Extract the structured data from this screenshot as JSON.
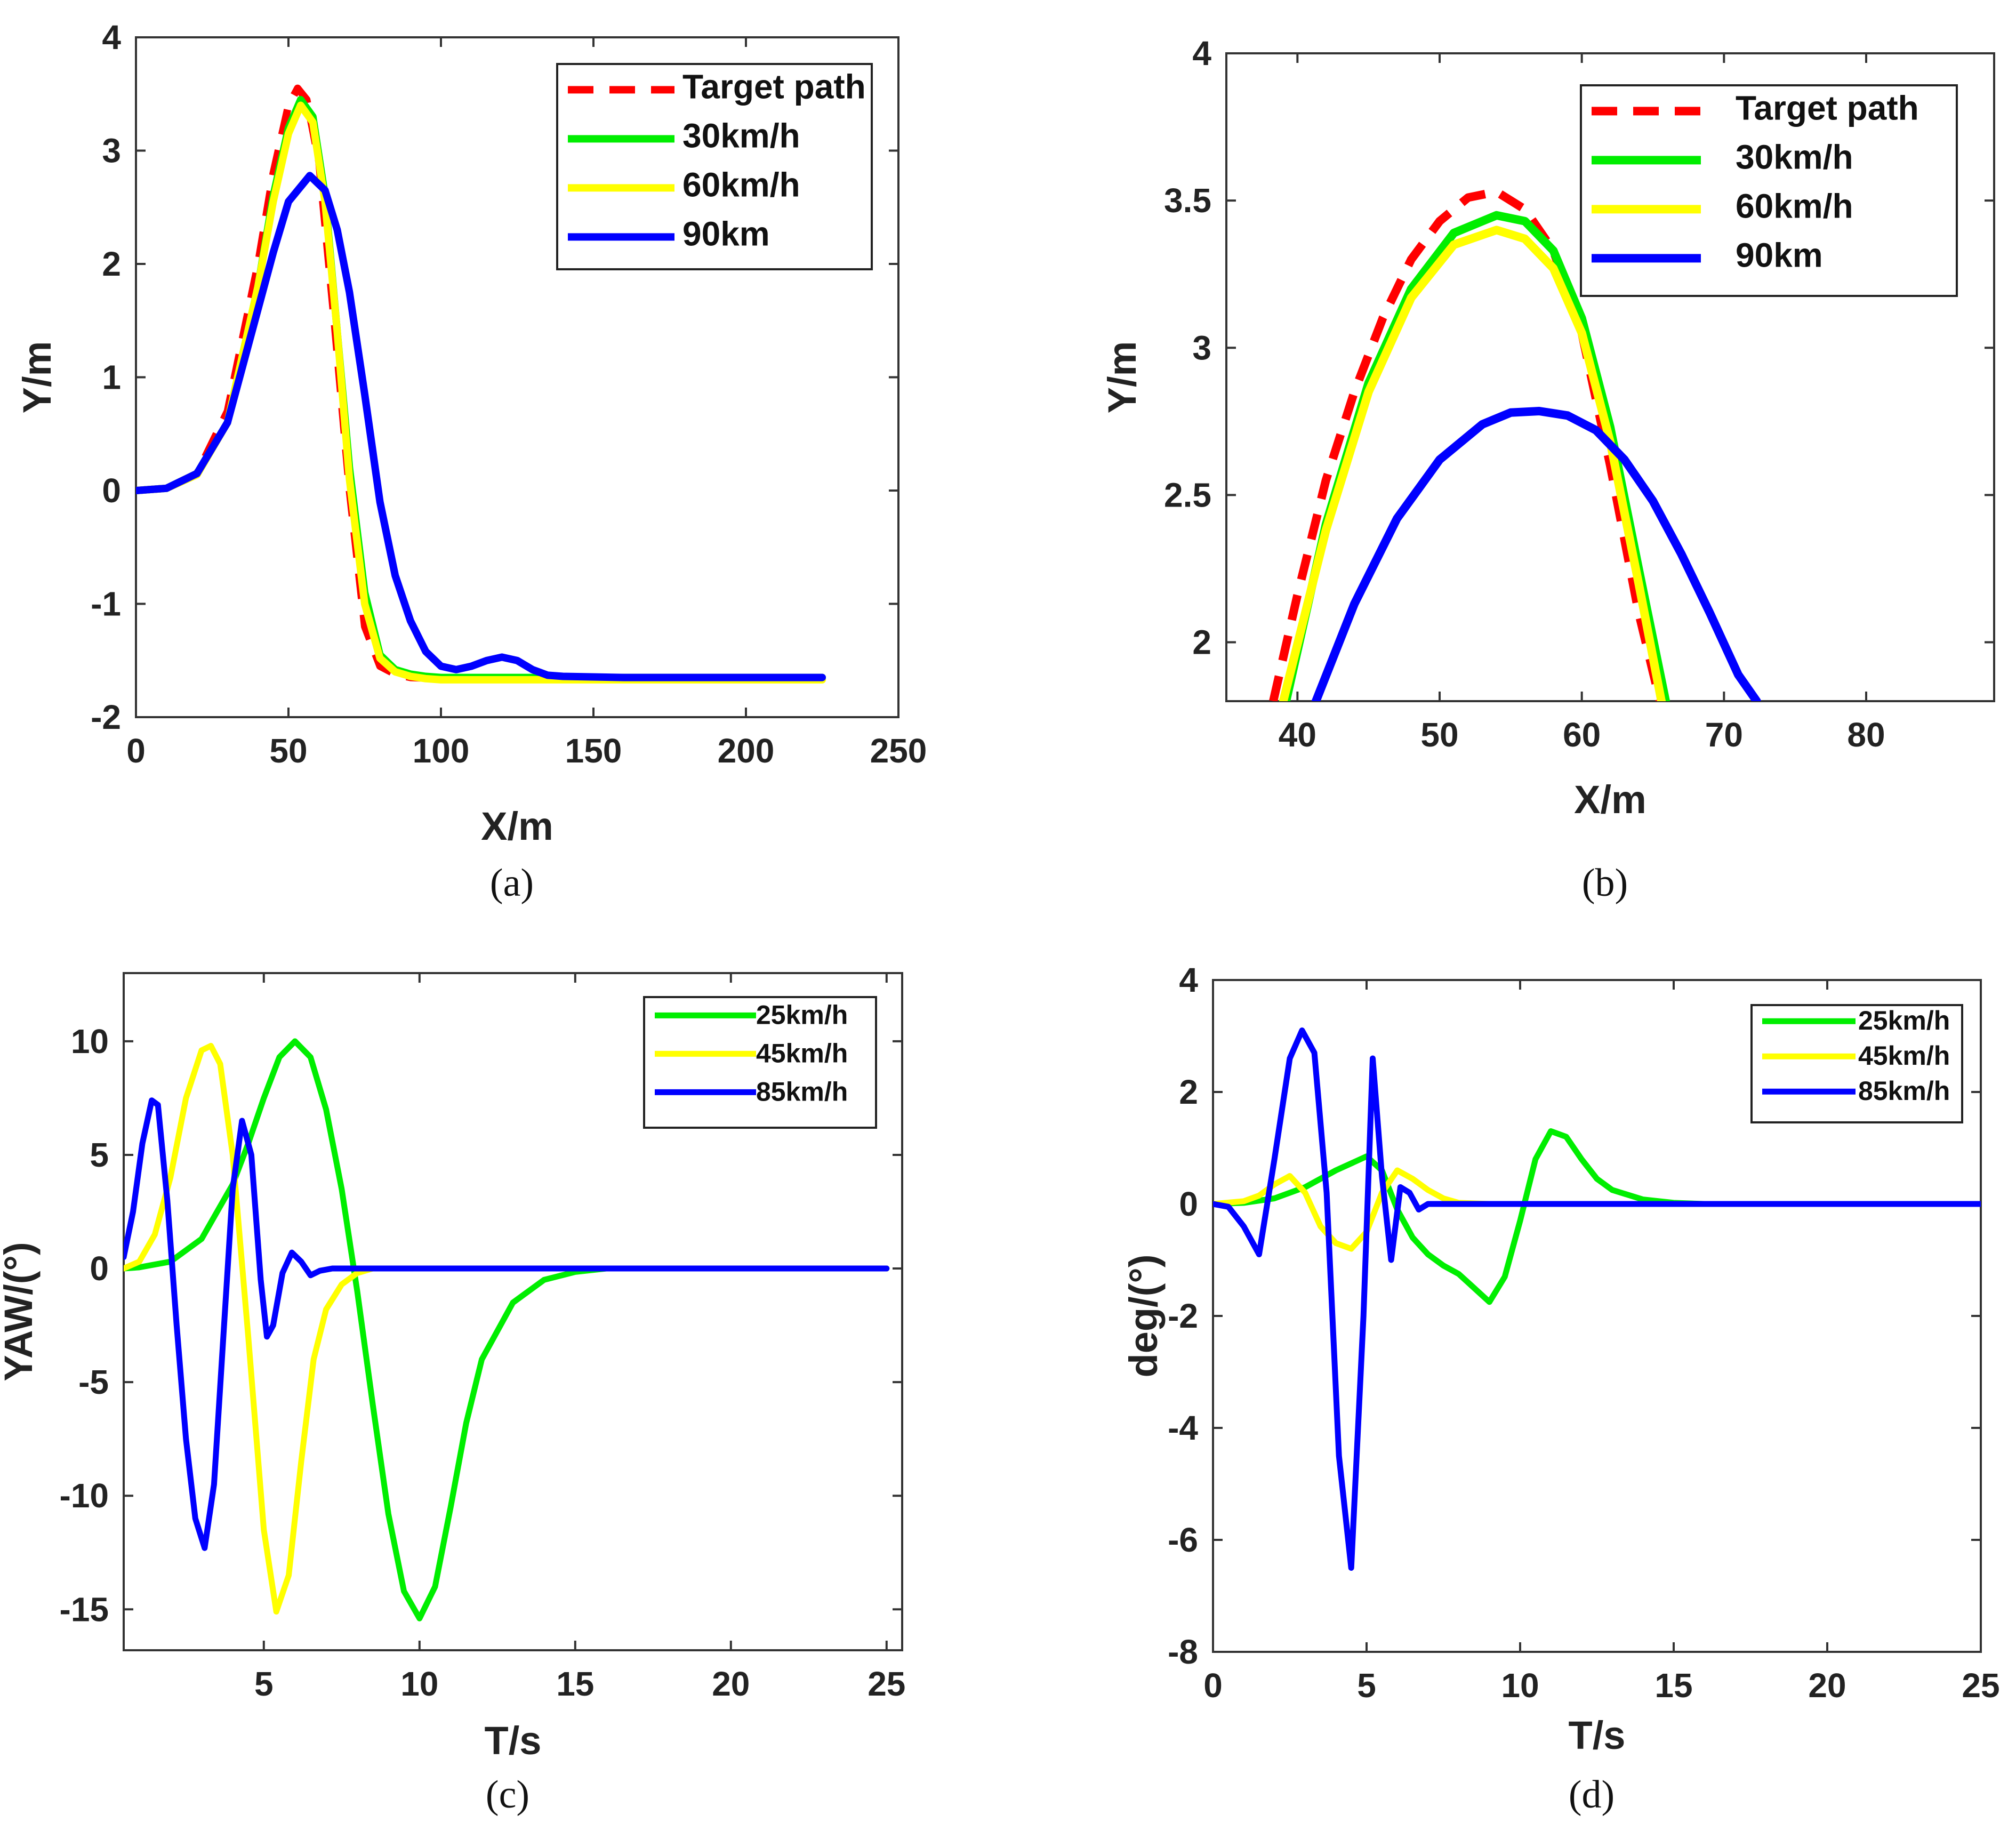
{
  "colors": {
    "target": "#ff0000",
    "green": "#00ee00",
    "yellow": "#ffff00",
    "blue": "#0000ff",
    "axis": "#333333"
  },
  "chart_data": [
    {
      "id": "a",
      "type": "line",
      "caption": "(a)",
      "xlabel": "X/m",
      "ylabel": "Y/m",
      "xlim": [
        0,
        250
      ],
      "ylim": [
        -2,
        4
      ],
      "xticks": [
        0,
        50,
        100,
        150,
        200,
        250
      ],
      "yticks": [
        -2,
        -1,
        0,
        1,
        2,
        3,
        4
      ],
      "legend": {
        "position": "top-right"
      },
      "series": [
        {
          "name": "Target path",
          "color": "#ff0000",
          "dash": true,
          "x": [
            0,
            10,
            20,
            30,
            40,
            45,
            50,
            53,
            56,
            60,
            65,
            70,
            75,
            80,
            85,
            90,
            100,
            120,
            150,
            200,
            225
          ],
          "y": [
            0,
            0.02,
            0.15,
            0.7,
            2.0,
            2.8,
            3.4,
            3.55,
            3.45,
            2.9,
            1.5,
            0,
            -1.2,
            -1.55,
            -1.62,
            -1.65,
            -1.66,
            -1.66,
            -1.66,
            -1.66,
            -1.66
          ]
        },
        {
          "name": "30km/h",
          "color": "#00ee00",
          "dash": false,
          "x": [
            0,
            10,
            20,
            30,
            40,
            45,
            50,
            54,
            58,
            62,
            66,
            70,
            75,
            80,
            85,
            90,
            95,
            100,
            110,
            150,
            225
          ],
          "y": [
            0,
            0.02,
            0.15,
            0.6,
            1.8,
            2.6,
            3.2,
            3.45,
            3.3,
            2.6,
            1.4,
            0.2,
            -0.9,
            -1.45,
            -1.58,
            -1.62,
            -1.64,
            -1.65,
            -1.65,
            -1.65,
            -1.65
          ]
        },
        {
          "name": "60km/h",
          "color": "#ffff00",
          "dash": false,
          "x": [
            0,
            10,
            20,
            30,
            40,
            45,
            50,
            54,
            58,
            62,
            66,
            70,
            75,
            80,
            85,
            90,
            95,
            100,
            110,
            150,
            225
          ],
          "y": [
            0,
            0.02,
            0.14,
            0.6,
            1.8,
            2.55,
            3.15,
            3.4,
            3.25,
            2.55,
            1.4,
            0.1,
            -1.0,
            -1.48,
            -1.6,
            -1.64,
            -1.66,
            -1.67,
            -1.67,
            -1.67,
            -1.67
          ]
        },
        {
          "name": "90km",
          "color": "#0000ff",
          "dash": false,
          "x": [
            0,
            10,
            20,
            30,
            40,
            45,
            50,
            57,
            62,
            66,
            70,
            75,
            80,
            85,
            90,
            95,
            100,
            105,
            110,
            115,
            120,
            125,
            130,
            135,
            140,
            160,
            225
          ],
          "y": [
            0,
            0.02,
            0.15,
            0.6,
            1.6,
            2.1,
            2.55,
            2.78,
            2.65,
            2.3,
            1.75,
            0.85,
            -0.1,
            -0.75,
            -1.15,
            -1.42,
            -1.55,
            -1.58,
            -1.55,
            -1.5,
            -1.47,
            -1.5,
            -1.58,
            -1.63,
            -1.64,
            -1.65,
            -1.65
          ]
        }
      ]
    },
    {
      "id": "b",
      "type": "line",
      "caption": "(b)",
      "xlabel": "X/m",
      "ylabel": "Y/m",
      "xlim": [
        35,
        89
      ],
      "ylim": [
        1.8,
        4
      ],
      "xticks": [
        40,
        50,
        60,
        70,
        80
      ],
      "yticks": [
        2,
        2.5,
        3,
        3.5,
        4
      ],
      "legend": {
        "position": "top-right"
      },
      "series": [
        {
          "name": "Target path",
          "color": "#ff0000",
          "dash": true,
          "x": [
            38.3,
            40,
            42,
            44,
            46,
            48,
            50,
            52,
            54,
            56,
            58,
            60,
            62,
            64,
            65.5
          ],
          "y": [
            1.8,
            2.16,
            2.55,
            2.85,
            3.1,
            3.3,
            3.43,
            3.51,
            3.53,
            3.47,
            3.33,
            3.05,
            2.6,
            2.1,
            1.8
          ]
        },
        {
          "name": "30km/h",
          "color": "#00ee00",
          "dash": false,
          "x": [
            39.2,
            42,
            45,
            48,
            51,
            54,
            56,
            58,
            60,
            62,
            64,
            65.9
          ],
          "y": [
            1.8,
            2.4,
            2.88,
            3.2,
            3.39,
            3.45,
            3.43,
            3.33,
            3.1,
            2.73,
            2.25,
            1.8
          ]
        },
        {
          "name": "60km/h",
          "color": "#ffff00",
          "dash": false,
          "x": [
            39.0,
            42,
            45,
            48,
            51,
            54,
            56,
            58,
            60,
            62,
            64,
            65.6
          ],
          "y": [
            1.8,
            2.38,
            2.85,
            3.17,
            3.35,
            3.4,
            3.37,
            3.27,
            3.05,
            2.68,
            2.2,
            1.8
          ]
        },
        {
          "name": "90km",
          "color": "#0000ff",
          "dash": false,
          "x": [
            41.3,
            44,
            47,
            50,
            53,
            55,
            57,
            59,
            61,
            63,
            65,
            67,
            69,
            71,
            72.3
          ],
          "y": [
            1.8,
            2.13,
            2.42,
            2.62,
            2.74,
            2.78,
            2.785,
            2.77,
            2.72,
            2.62,
            2.48,
            2.3,
            2.1,
            1.89,
            1.8
          ]
        }
      ]
    },
    {
      "id": "c",
      "type": "line",
      "caption": "(c)",
      "xlabel": "T/s",
      "ylabel": "YAW/(°)",
      "xlim": [
        0.5,
        25.5
      ],
      "ylim": [
        -16.8,
        13
      ],
      "xticks": [
        5,
        10,
        15,
        20,
        25
      ],
      "yticks": [
        -15,
        -10,
        -5,
        0,
        5,
        10
      ],
      "legend": {
        "position": "top-right"
      },
      "series": [
        {
          "name": "25km/h",
          "color": "#00ee00",
          "dash": false,
          "x": [
            0.5,
            1,
            2,
            3,
            4,
            4.5,
            5,
            5.5,
            6,
            6.5,
            7,
            7.5,
            8,
            8.5,
            9,
            9.5,
            10,
            10.5,
            11,
            11.5,
            12,
            13,
            14,
            15,
            16,
            25
          ],
          "y": [
            0,
            0.05,
            0.3,
            1.3,
            3.7,
            5.5,
            7.5,
            9.3,
            10,
            9.3,
            7.0,
            3.5,
            -1.0,
            -6.0,
            -10.8,
            -14.2,
            -15.4,
            -14.0,
            -10.5,
            -6.8,
            -4.0,
            -1.5,
            -0.5,
            -0.15,
            0,
            0
          ]
        },
        {
          "name": "45km/h",
          "color": "#ffff00",
          "dash": false,
          "x": [
            0.5,
            1,
            1.5,
            2,
            2.5,
            3,
            3.3,
            3.6,
            4,
            4.5,
            5,
            5.4,
            5.8,
            6.2,
            6.6,
            7,
            7.5,
            8,
            8.5,
            9,
            25
          ],
          "y": [
            0,
            0.3,
            1.5,
            4.0,
            7.5,
            9.6,
            9.8,
            9.0,
            5.0,
            -3.0,
            -11.5,
            -15.1,
            -13.5,
            -8.5,
            -4.0,
            -1.8,
            -0.7,
            -0.2,
            0,
            0,
            0
          ]
        },
        {
          "name": "85km/h",
          "color": "#0000ff",
          "dash": false,
          "x": [
            0.5,
            0.8,
            1.1,
            1.4,
            1.6,
            1.9,
            2.2,
            2.5,
            2.8,
            3.1,
            3.4,
            3.7,
            4.0,
            4.3,
            4.6,
            4.9,
            5.1,
            5.3,
            5.6,
            5.9,
            6.2,
            6.5,
            6.8,
            7.2,
            25
          ],
          "y": [
            0.5,
            2.5,
            5.5,
            7.4,
            7.2,
            3.0,
            -2.5,
            -7.5,
            -11.0,
            -12.3,
            -9.5,
            -3.0,
            3.5,
            6.5,
            5.0,
            -0.5,
            -3.0,
            -2.5,
            -0.2,
            0.7,
            0.3,
            -0.3,
            -0.1,
            0,
            0
          ]
        }
      ]
    },
    {
      "id": "d",
      "type": "line",
      "caption": "(d)",
      "xlabel": "T/s",
      "ylabel": "deg/(°)",
      "xlim": [
        0,
        25
      ],
      "ylim": [
        -8,
        4
      ],
      "xticks": [
        0,
        5,
        10,
        15,
        20,
        25
      ],
      "yticks": [
        -8,
        -6,
        -4,
        -2,
        0,
        2,
        4
      ],
      "legend": {
        "position": "top-right"
      },
      "series": [
        {
          "name": "25km/h",
          "color": "#00ee00",
          "dash": false,
          "x": [
            0,
            1,
            2,
            3,
            4,
            5,
            5.5,
            6,
            6.5,
            7,
            7.5,
            8,
            8.5,
            9,
            9.5,
            10,
            10.5,
            11,
            11.5,
            12,
            12.5,
            13,
            14,
            15,
            16,
            25
          ],
          "y": [
            0,
            0.02,
            0.1,
            0.3,
            0.6,
            0.85,
            0.6,
            -0.1,
            -0.6,
            -0.9,
            -1.1,
            -1.25,
            -1.5,
            -1.75,
            -1.3,
            -0.3,
            0.8,
            1.3,
            1.2,
            0.8,
            0.45,
            0.25,
            0.08,
            0.02,
            0,
            0
          ]
        },
        {
          "name": "45km/h",
          "color": "#ffff00",
          "dash": false,
          "x": [
            0,
            1,
            1.5,
            2,
            2.5,
            3,
            3.5,
            4,
            4.5,
            5,
            5.5,
            6,
            6.5,
            7,
            7.5,
            8,
            9,
            25
          ],
          "y": [
            0,
            0.05,
            0.15,
            0.35,
            0.5,
            0.2,
            -0.4,
            -0.7,
            -0.8,
            -0.5,
            0.2,
            0.6,
            0.45,
            0.25,
            0.1,
            0.02,
            0,
            0
          ]
        },
        {
          "name": "85km/h",
          "color": "#0000ff",
          "dash": false,
          "x": [
            0,
            0.5,
            1,
            1.5,
            2,
            2.5,
            2.9,
            3.3,
            3.7,
            4.1,
            4.5,
            4.9,
            5.2,
            5.5,
            5.8,
            6.1,
            6.4,
            6.7,
            7.0,
            7.5,
            25
          ],
          "y": [
            0,
            -0.05,
            -0.4,
            -0.9,
            0.8,
            2.6,
            3.1,
            2.7,
            0.2,
            -4.5,
            -6.5,
            -2.0,
            2.6,
            0.5,
            -1.0,
            0.3,
            0.2,
            -0.1,
            0,
            0,
            0
          ]
        }
      ]
    }
  ]
}
